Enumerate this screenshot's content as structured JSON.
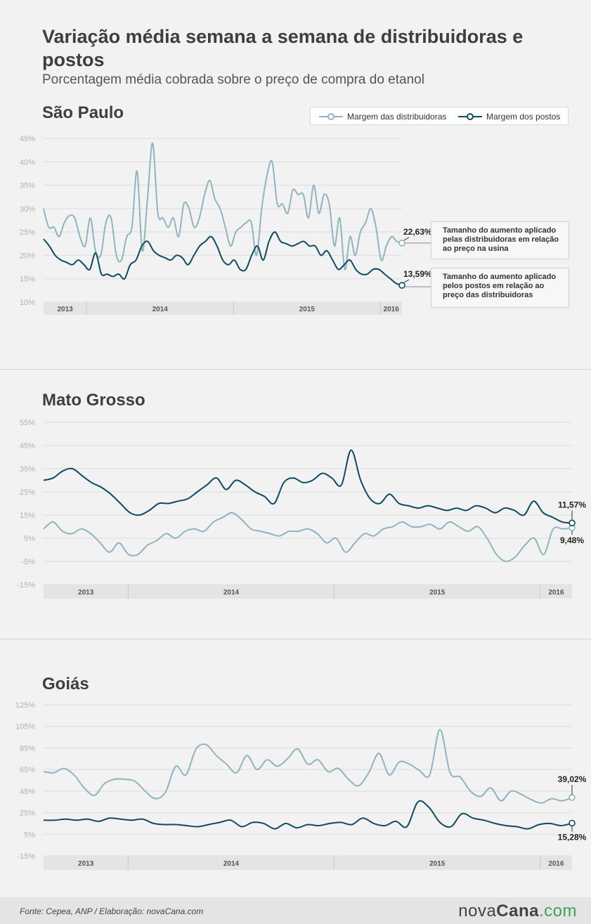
{
  "header": {
    "title": "Variação média semana a semana de distribuidoras e postos",
    "subtitle": "Porcentagem média cobrada sobre o preço de compra do etanol"
  },
  "legend": {
    "distribuidoras": "Margem das distribuidoras",
    "postos": "Margem dos postos"
  },
  "colors": {
    "distribuidoras": "#8fb4bf",
    "postos": "#0e4a63"
  },
  "callouts": {
    "distribuidoras": "Tamanho do aumento aplicado pelas distribuidoras em relação ao preço na usina",
    "postos": "Tamanho do aumento aplicado pelos postos em relação ao preço das distribuidoras"
  },
  "footer": {
    "source": "Fonte: Cepea, ANP  /  Elaboração: novaCana.com",
    "logo_a": "nova",
    "logo_b": "Cana",
    "logo_c": ".com"
  },
  "chart_data": [
    {
      "type": "line",
      "title": "São Paulo",
      "ylim": [
        10,
        45
      ],
      "yticks": [
        "10%",
        "15%",
        "20%",
        "25%",
        "30%",
        "35%",
        "40%",
        "45%"
      ],
      "years": [
        "2013",
        "2014",
        "2015",
        "2016"
      ],
      "year_bounds": [
        0,
        0.12,
        0.53,
        0.94,
        1
      ],
      "grid": true,
      "series": [
        {
          "name": "Margem das distribuidoras",
          "last_label": "22,63%",
          "values": [
            30,
            26,
            26,
            24,
            27,
            28.5,
            28,
            24,
            22,
            28,
            21,
            20,
            27,
            28,
            20,
            19,
            24,
            26,
            38,
            21,
            32,
            44,
            29,
            28,
            26,
            28,
            24,
            31,
            30,
            26,
            28,
            33,
            36,
            32,
            30,
            26,
            22,
            25,
            26,
            27,
            27,
            20,
            30,
            37,
            40,
            31,
            31,
            29,
            34,
            33,
            33,
            28,
            35,
            29,
            33,
            31,
            22,
            28,
            17,
            24,
            20,
            25,
            27,
            30,
            26,
            19,
            22,
            24,
            23,
            22.63
          ]
        },
        {
          "name": "Margem dos postos",
          "last_label": "13,59%",
          "values": [
            23.5,
            22,
            20,
            19,
            18.5,
            18,
            19,
            18,
            17,
            20.5,
            16,
            16,
            15.5,
            16,
            15,
            18,
            19,
            22,
            23,
            21,
            20,
            19.5,
            19,
            20,
            19.5,
            18,
            20,
            22,
            23,
            24,
            22,
            19,
            18,
            19,
            17,
            17,
            20,
            22,
            19,
            23,
            25,
            23,
            22.5,
            22,
            22.5,
            23,
            22,
            22,
            20,
            21,
            19,
            17,
            18,
            19,
            17,
            16,
            16,
            17,
            17,
            16,
            15,
            14,
            13.59
          ]
        }
      ]
    },
    {
      "type": "line",
      "title": "Mato Grosso",
      "ylim": [
        -15,
        55
      ],
      "yticks": [
        "-15%",
        "-5%",
        "5%",
        "15%",
        "25%",
        "35%",
        "45%",
        "55%"
      ],
      "years": [
        "2013",
        "2014",
        "2015",
        "2016"
      ],
      "year_bounds": [
        0,
        0.16,
        0.55,
        0.94,
        1
      ],
      "grid": true,
      "series": [
        {
          "name": "Margem das distribuidoras",
          "last_label": "9,48%",
          "values": [
            9,
            12,
            8,
            7,
            9,
            7,
            3,
            -1,
            3,
            -2,
            -2,
            2,
            4,
            7,
            5,
            8,
            9,
            8,
            12,
            14,
            16,
            13,
            9,
            8,
            7,
            6,
            8,
            8,
            9,
            7,
            3,
            5,
            -1,
            3,
            7,
            6,
            9,
            10,
            12,
            10,
            10,
            11,
            9,
            12,
            10,
            8,
            10,
            5,
            -2,
            -5,
            -3,
            2,
            5,
            -2,
            9,
            9,
            9.48
          ]
        },
        {
          "name": "Margem dos postos",
          "last_label": "11,57%",
          "values": [
            30,
            31,
            34,
            35,
            32,
            29,
            27,
            24,
            20,
            16,
            15,
            17,
            20,
            20,
            21,
            22,
            25,
            28,
            31,
            26,
            30,
            28,
            25,
            23,
            20,
            29,
            31,
            29,
            30,
            33,
            31,
            28,
            43,
            30,
            22,
            20,
            24,
            20,
            19,
            18,
            19,
            18,
            17,
            18,
            17,
            19,
            18,
            16,
            18,
            17,
            15,
            21,
            16,
            14,
            12,
            11.57
          ]
        }
      ]
    },
    {
      "type": "line",
      "title": "Goiás",
      "ylim": [
        -15,
        125
      ],
      "yticks": [
        "-15%",
        "5%",
        "25%",
        "45%",
        "65%",
        "85%",
        "105%",
        "125%"
      ],
      "years": [
        "2013",
        "2014",
        "2015",
        "2016"
      ],
      "year_bounds": [
        0,
        0.16,
        0.55,
        0.94,
        1
      ],
      "grid": true,
      "series": [
        {
          "name": "Margem das distribuidoras",
          "last_label": "39,02%",
          "values": [
            63,
            62,
            66,
            60,
            48,
            41,
            52,
            56,
            56,
            54,
            45,
            38,
            44,
            68,
            60,
            84,
            88,
            78,
            70,
            62,
            78,
            65,
            74,
            68,
            75,
            84,
            70,
            74,
            63,
            66,
            56,
            50,
            62,
            80,
            60,
            72,
            70,
            64,
            60,
            102,
            62,
            58,
            45,
            40,
            48,
            36,
            45,
            42,
            37,
            34,
            38,
            36,
            39.02
          ]
        },
        {
          "name": "Margem dos postos",
          "last_label": "15,28%",
          "values": [
            18,
            18,
            19,
            18,
            19,
            17,
            20,
            19,
            18,
            19,
            15,
            14,
            14,
            13,
            12,
            14,
            16,
            18,
            12,
            16,
            15,
            10,
            15,
            11,
            14,
            13,
            15,
            16,
            14,
            20,
            15,
            13,
            17,
            12,
            35,
            30,
            16,
            12,
            24,
            20,
            18,
            15,
            13,
            12,
            10,
            14,
            15,
            13,
            15.28
          ]
        }
      ]
    }
  ]
}
